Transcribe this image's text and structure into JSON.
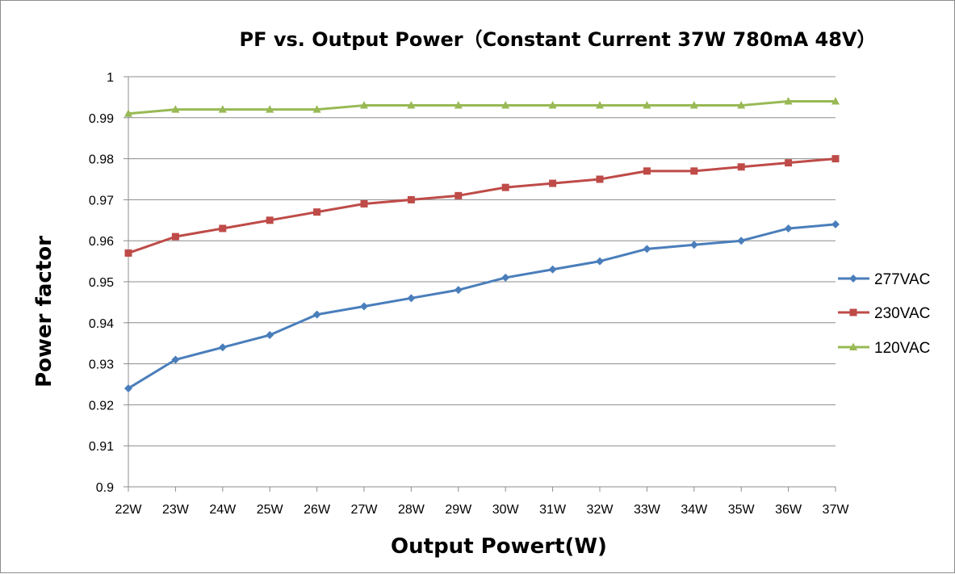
{
  "chart_data": {
    "type": "line",
    "title": "PF vs. Output Power（Constant Current 37W 780mA 48V）",
    "xlabel": "Output Powert(W)",
    "ylabel": "Power factor",
    "categories": [
      "22W",
      "23W",
      "24W",
      "25W",
      "26W",
      "27W",
      "28W",
      "29W",
      "30W",
      "31W",
      "32W",
      "33W",
      "34W",
      "35W",
      "36W",
      "37W"
    ],
    "ylim": [
      0.9,
      1.0
    ],
    "yticks": [
      "0.9",
      "0.91",
      "0.92",
      "0.93",
      "0.94",
      "0.95",
      "0.96",
      "0.97",
      "0.98",
      "0.99",
      "1"
    ],
    "ytick_values": [
      0.9,
      0.91,
      0.92,
      0.93,
      0.94,
      0.95,
      0.96,
      0.97,
      0.98,
      0.99,
      1.0
    ],
    "grid": true,
    "legend_position": "right",
    "series": [
      {
        "name": "277VAC",
        "color": "#4a7ebb",
        "marker": "diamond",
        "values": [
          0.924,
          0.931,
          0.934,
          0.937,
          0.942,
          0.944,
          0.946,
          0.948,
          0.951,
          0.953,
          0.955,
          0.958,
          0.959,
          0.96,
          0.963,
          0.964
        ]
      },
      {
        "name": "230VAC",
        "color": "#be4b48",
        "marker": "square",
        "values": [
          0.957,
          0.961,
          0.963,
          0.965,
          0.967,
          0.969,
          0.97,
          0.971,
          0.973,
          0.974,
          0.975,
          0.977,
          0.977,
          0.978,
          0.979,
          0.98
        ]
      },
      {
        "name": "120VAC",
        "color": "#98b954",
        "marker": "triangle",
        "values": [
          0.991,
          0.992,
          0.992,
          0.992,
          0.992,
          0.993,
          0.993,
          0.993,
          0.993,
          0.993,
          0.993,
          0.993,
          0.993,
          0.993,
          0.994,
          0.994
        ]
      }
    ]
  }
}
